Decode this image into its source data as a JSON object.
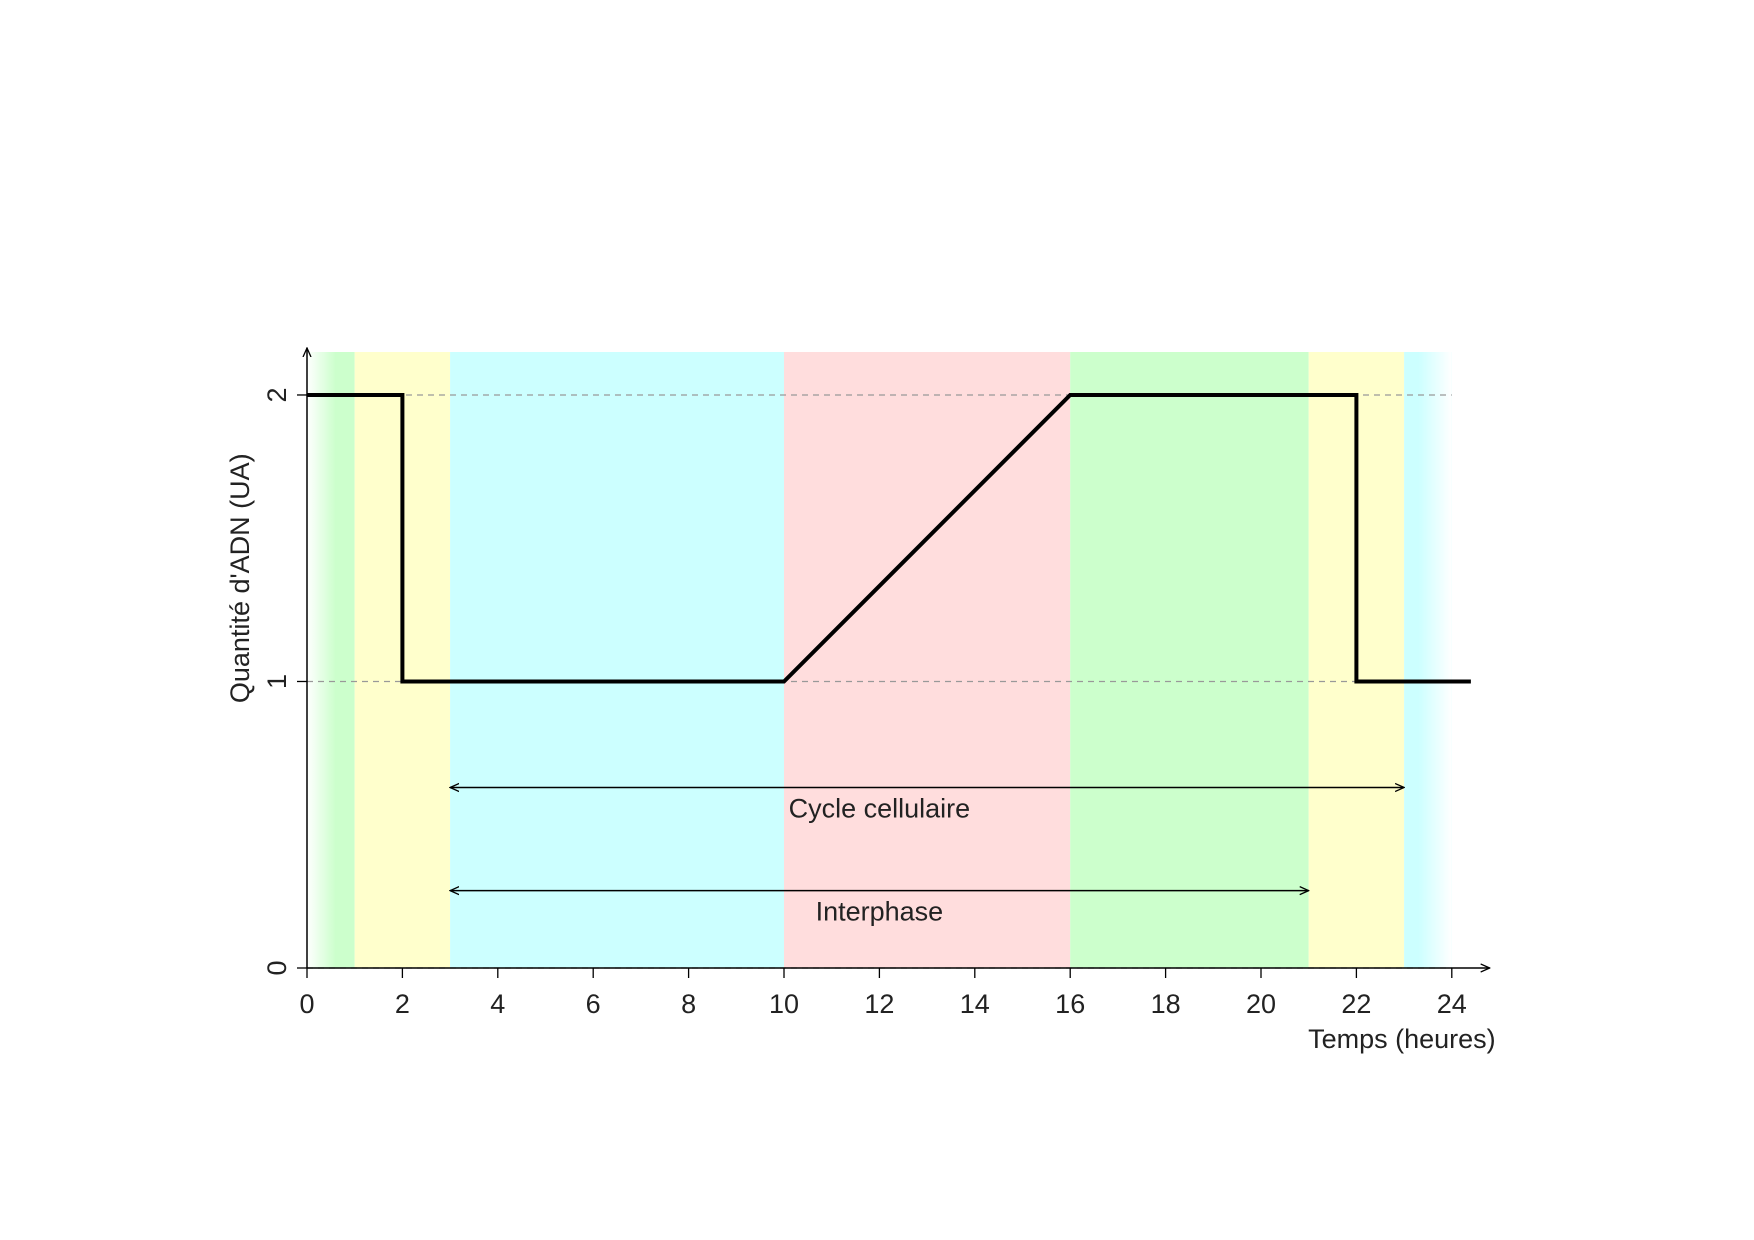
{
  "chart_data": {
    "type": "line",
    "x": [
      0,
      2,
      2,
      10,
      16,
      22,
      22,
      24.4
    ],
    "values": [
      2,
      2,
      1,
      1,
      2,
      2,
      1,
      1
    ],
    "color": "#000000",
    "xlim": [
      0,
      24.5
    ],
    "ylim": [
      0,
      2.15
    ],
    "xticks": [
      0,
      2,
      4,
      6,
      8,
      10,
      12,
      14,
      16,
      18,
      20,
      22,
      24
    ],
    "yticks": [
      0,
      1,
      2
    ],
    "grid": true,
    "x_label": "Temps (heures)",
    "y_label": "Quantité d'ADN (UA)",
    "bands": [
      {
        "from": 0,
        "to": 1,
        "color": "#ccffcc"
      },
      {
        "from": 1,
        "to": 3,
        "color": "#ffffcc"
      },
      {
        "from": 3,
        "to": 10,
        "color": "#ccffff"
      },
      {
        "from": 10,
        "to": 16,
        "color": "#ffdddd"
      },
      {
        "from": 16,
        "to": 21,
        "color": "#ccffcc"
      },
      {
        "from": 21,
        "to": 23,
        "color": "#ffffcc"
      },
      {
        "from": 23,
        "to": 24,
        "color": "#ccffff"
      }
    ],
    "annotations": [
      {
        "text": "Cycle cellulaire",
        "from": 3,
        "to": 23,
        "y": 0.63,
        "label_x": 12
      },
      {
        "text": "Interphase",
        "from": 3,
        "to": 21,
        "y": 0.27,
        "label_x": 12
      }
    ]
  }
}
